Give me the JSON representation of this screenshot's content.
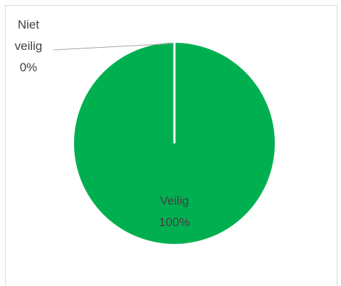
{
  "chart_data": {
    "type": "pie",
    "title": "",
    "categories": [
      "Niet veilig",
      "Veilig"
    ],
    "values": [
      0,
      100
    ],
    "series": [
      {
        "name": "",
        "slices": [
          {
            "category_line1": "Niet",
            "category_line2": "veilig",
            "percent_label": "0%",
            "value": 0,
            "color": "#00B050"
          },
          {
            "category": "Veilig",
            "percent_label": "100%",
            "value": 100,
            "color": "#00B050"
          }
        ]
      }
    ],
    "legend": "none",
    "slice_separator_color": "#ffffff",
    "label_text_color_outside": "#404040",
    "label_text_color_inside": "#404040",
    "leader_line_color": "#a6a6a6"
  }
}
